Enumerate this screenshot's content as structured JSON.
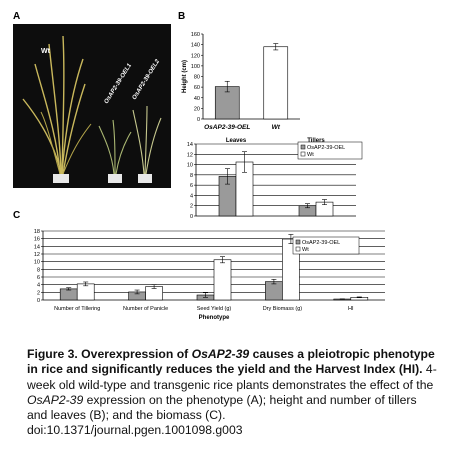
{
  "panels": {
    "a": "A",
    "b": "B",
    "c": "C"
  },
  "photo": {
    "labels": [
      "Wt",
      "OsAP2-39-OEL1",
      "OsAP2-39-OEL2"
    ]
  },
  "chart_data": [
    {
      "id": "B-top",
      "type": "bar",
      "ylabel": "Height (cm)",
      "ylim": [
        0,
        160
      ],
      "yticks": [
        0,
        20,
        40,
        60,
        80,
        100,
        120,
        140,
        160
      ],
      "categories": [
        "OsAP2-39-OEL",
        "Wt"
      ],
      "values": [
        61,
        136
      ],
      "errors": [
        10,
        6
      ],
      "grid": false
    },
    {
      "id": "B-bottom",
      "type": "bar",
      "ylim": [
        0,
        14
      ],
      "yticks": [
        0,
        2,
        4,
        6,
        8,
        10,
        12,
        14
      ],
      "categories": [
        "Leaves",
        "Tillers"
      ],
      "series": [
        {
          "name": "OsAP2-39-OEL",
          "values": [
            7.7,
            2.0
          ],
          "errors": [
            1.5,
            0.4
          ]
        },
        {
          "name": "Wt",
          "values": [
            10.5,
            2.7
          ],
          "errors": [
            2.0,
            0.5
          ]
        }
      ],
      "legend": "top-right",
      "grid": true
    },
    {
      "id": "C",
      "type": "bar",
      "xlabel": "Phenotype",
      "ylim": [
        0,
        18
      ],
      "yticks": [
        0,
        2,
        4,
        6,
        8,
        10,
        12,
        14,
        16,
        18
      ],
      "categories": [
        "Number of Tillering",
        "Number of Panicle",
        "Seed Yield (g)",
        "Dry Biomass (g)",
        "HI"
      ],
      "series": [
        {
          "name": "OsAP2-39-OEL",
          "values": [
            2.9,
            2.1,
            1.3,
            4.8,
            0.25
          ],
          "errors": [
            0.3,
            0.5,
            0.6,
            0.6,
            0.05
          ]
        },
        {
          "name": "Wt",
          "values": [
            4.2,
            3.5,
            10.5,
            15.9,
            0.7
          ],
          "errors": [
            0.5,
            0.5,
            0.8,
            1.2,
            0.1
          ]
        }
      ],
      "legend": "top-right",
      "grid": true
    }
  ],
  "caption": {
    "fig": "Figure 3.",
    "t1": " Overexpression of ",
    "gene": "OsAP2-39",
    "t2": " causes a pleiotropic phenotype in rice and significantly reduces the yield and the Harvest Index (HI).",
    "b1": " 4-week old wild-type and transgenic rice plants demonstrates the effect of the ",
    "gene2": "OsAP2-39",
    "b2": " expression on the phenotype (A); height and number of tillers and leaves (B); and the biomass (C).",
    "doi": "doi:10.1371/journal.pgen.1001098.g003"
  },
  "colors": {
    "oel": "#9a9a9a",
    "wt": "#ffffff",
    "photo_bg": "#0d0d0d"
  }
}
